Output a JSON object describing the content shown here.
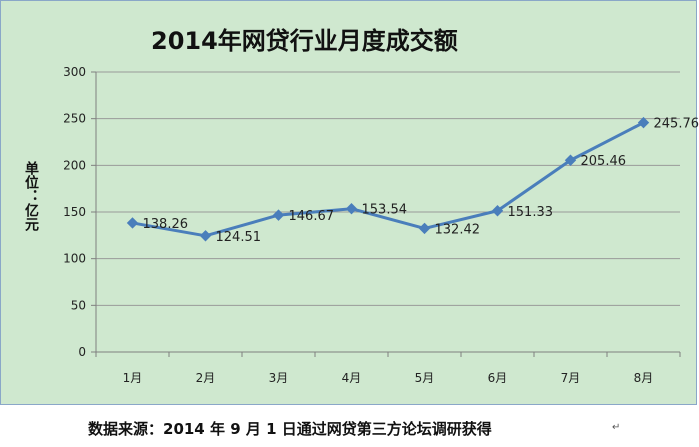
{
  "chart_data": {
    "type": "line",
    "title": "2014年网贷行业月度成交额",
    "ylabel": "单位：亿元",
    "xlabel": "",
    "categories": [
      "1月",
      "2月",
      "3月",
      "4月",
      "5月",
      "6月",
      "7月",
      "8月"
    ],
    "series": [
      {
        "values": [
          138.26,
          124.51,
          146.67,
          153.54,
          132.42,
          151.33,
          205.46,
          245.76
        ],
        "color": "#4a7ebb"
      }
    ],
    "data_labels": [
      "138.26",
      "124.51",
      "146.67",
      "153.54",
      "132.42",
      "151.33",
      "205.46",
      "245.76"
    ],
    "ylim": [
      0,
      300
    ],
    "yticks": [
      0,
      50,
      100,
      150,
      200,
      250,
      300
    ],
    "ytick_labels": [
      "0",
      "50",
      "100",
      "150",
      "200",
      "250",
      "300"
    ],
    "grid": true,
    "legend": "none",
    "background_color": "#cfe8cf"
  },
  "footer": {
    "source": "数据来源：2014 年 9 月 1 日通过网贷第三方论坛调研获得",
    "return_mark": "↵"
  }
}
